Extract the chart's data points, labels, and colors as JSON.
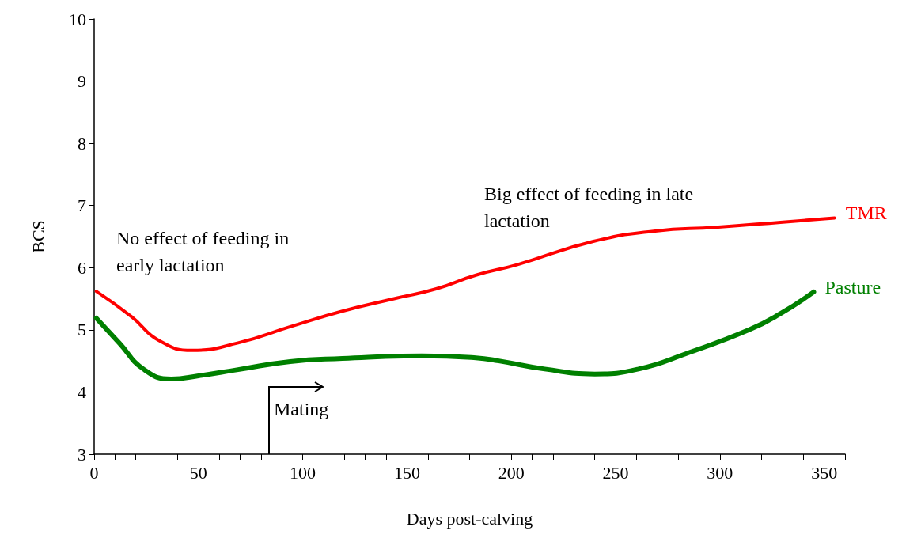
{
  "chart_data": {
    "type": "line",
    "xlabel": "Days post-calving",
    "ylabel": "BCS",
    "xlim": [
      0,
      360
    ],
    "ylim": [
      3,
      10
    ],
    "xticks": [
      0,
      {
        "value": 10,
        "label": null
      },
      {
        "value": 20,
        "label": null
      },
      {
        "value": 30,
        "label": null
      },
      {
        "value": 40,
        "label": null
      },
      50,
      {
        "value": 60,
        "label": null
      },
      {
        "value": 70,
        "label": null
      },
      {
        "value": 80,
        "label": null
      },
      {
        "value": 90,
        "label": null
      },
      100,
      {
        "value": 110,
        "label": null
      },
      {
        "value": 120,
        "label": null
      },
      {
        "value": 130,
        "label": null
      },
      {
        "value": 140,
        "label": null
      },
      150,
      {
        "value": 160,
        "label": null
      },
      {
        "value": 170,
        "label": null
      },
      {
        "value": 180,
        "label": null
      },
      {
        "value": 190,
        "label": null
      },
      200,
      {
        "value": 210,
        "label": null
      },
      {
        "value": 220,
        "label": null
      },
      {
        "value": 230,
        "label": null
      },
      {
        "value": 240,
        "label": null
      },
      250,
      {
        "value": 260,
        "label": null
      },
      {
        "value": 270,
        "label": null
      },
      {
        "value": 280,
        "label": null
      },
      {
        "value": 290,
        "label": null
      },
      300,
      {
        "value": 310,
        "label": null
      },
      {
        "value": 320,
        "label": null
      },
      {
        "value": 330,
        "label": null
      },
      {
        "value": 340,
        "label": null
      },
      350,
      {
        "value": 360,
        "label": null
      }
    ],
    "yticks": [
      3,
      4,
      5,
      6,
      7,
      8,
      9,
      10
    ],
    "series": [
      {
        "name": "TMR",
        "color": "#ff0000",
        "x": [
          1,
          18,
          31,
          47,
          69,
          94,
          119,
          145,
          164,
          183,
          203,
          239,
          269,
          298,
          329,
          355
        ],
        "values": [
          5.62,
          5.21,
          4.83,
          4.67,
          4.79,
          5.05,
          5.3,
          5.51,
          5.66,
          5.88,
          6.05,
          6.42,
          6.59,
          6.65,
          6.73,
          6.8
        ]
      },
      {
        "name": "Pasture",
        "color": "#008000",
        "x": [
          1,
          12,
          24,
          37,
          50,
          69,
          94,
          119,
          157,
          183,
          194,
          216,
          240,
          261,
          284,
          314,
          329,
          345
        ],
        "values": [
          5.19,
          4.79,
          4.36,
          4.21,
          4.26,
          4.36,
          4.49,
          4.54,
          4.58,
          4.55,
          4.5,
          4.37,
          4.29,
          4.37,
          4.62,
          5.0,
          5.26,
          5.61
        ]
      }
    ],
    "annotations": [
      "No effect of feeding in\nearly lactation",
      "Big effect of feeding in late\nlactation",
      "Mating"
    ],
    "legend": false,
    "grid": false
  }
}
